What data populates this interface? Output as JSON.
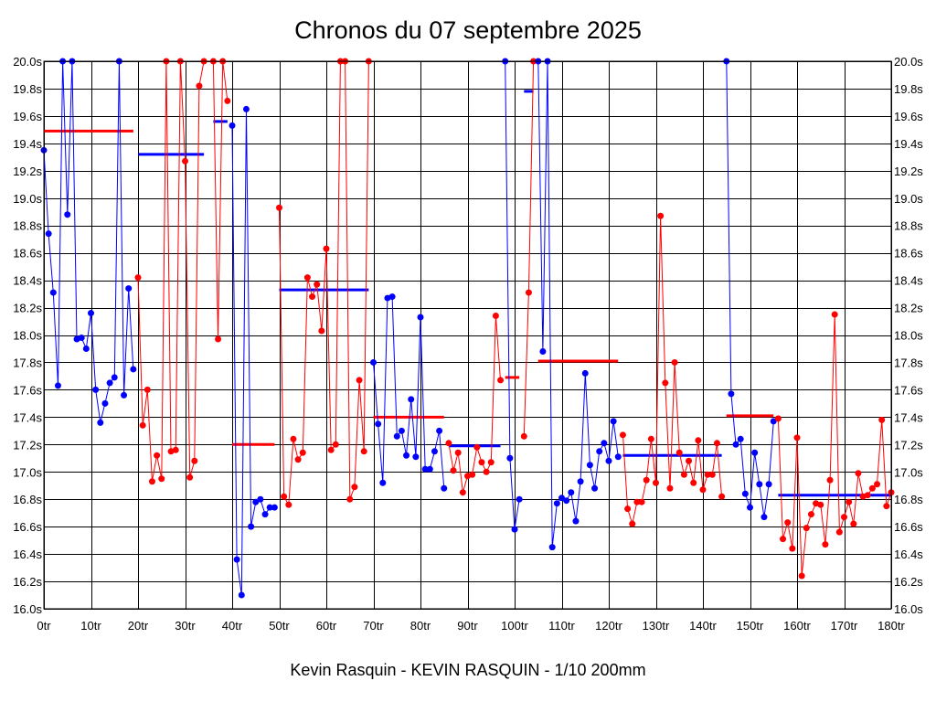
{
  "chart_data": {
    "type": "line",
    "title": "Chronos du 07 septembre 2025",
    "footer": "Kevin Rasquin - KEVIN RASQUIN - 1/10 200mm",
    "xlim": [
      0,
      180
    ],
    "ylim": [
      16.0,
      20.0
    ],
    "grid": true,
    "x_ticks": [
      0,
      10,
      20,
      30,
      40,
      50,
      60,
      70,
      80,
      90,
      100,
      110,
      120,
      130,
      140,
      150,
      160,
      170,
      180
    ],
    "x_tick_labels": [
      "0tr",
      "10tr",
      "20tr",
      "30tr",
      "40tr",
      "50tr",
      "60tr",
      "70tr",
      "80tr",
      "90tr",
      "100tr",
      "110tr",
      "120tr",
      "130tr",
      "140tr",
      "150tr",
      "160tr",
      "170tr",
      "180tr"
    ],
    "y_ticks": [
      16.0,
      16.2,
      16.4,
      16.6,
      16.8,
      17.0,
      17.2,
      17.4,
      17.6,
      17.8,
      18.0,
      18.2,
      18.4,
      18.6,
      18.8,
      19.0,
      19.2,
      19.4,
      19.6,
      19.8,
      20.0
    ],
    "y_tick_labels": [
      "16.0s",
      "16.2s",
      "16.4s",
      "16.6s",
      "16.8s",
      "17.0s",
      "17.2s",
      "17.4s",
      "17.6s",
      "17.8s",
      "18.0s",
      "18.2s",
      "18.4s",
      "18.6s",
      "18.8s",
      "19.0s",
      "19.2s",
      "19.4s",
      "19.6s",
      "19.8s",
      "20.0s"
    ],
    "colors": {
      "blue": "#0000ff",
      "red": "#ff0000"
    },
    "series": [
      {
        "color": "blue",
        "points": [
          [
            0,
            19.35
          ],
          [
            1,
            18.74
          ],
          [
            2,
            18.31
          ],
          [
            3,
            17.63
          ],
          [
            4,
            20.0
          ],
          [
            5,
            18.88
          ],
          [
            6,
            20.0
          ],
          [
            7,
            17.97
          ],
          [
            8,
            17.98
          ],
          [
            9,
            17.9
          ],
          [
            10,
            18.16
          ],
          [
            11,
            17.6
          ],
          [
            12,
            17.36
          ],
          [
            13,
            17.5
          ],
          [
            14,
            17.65
          ],
          [
            15,
            17.69
          ],
          [
            16,
            20.0
          ],
          [
            17,
            17.56
          ],
          [
            18,
            18.34
          ],
          [
            19,
            17.75
          ]
        ]
      },
      {
        "color": "red",
        "points": [
          [
            20,
            18.42
          ],
          [
            21,
            17.34
          ],
          [
            22,
            17.6
          ],
          [
            23,
            16.93
          ],
          [
            24,
            17.12
          ],
          [
            25,
            16.95
          ],
          [
            26,
            20.0
          ],
          [
            27,
            17.15
          ],
          [
            28,
            17.16
          ],
          [
            29,
            20.0
          ],
          [
            30,
            19.27
          ],
          [
            31,
            16.96
          ],
          [
            32,
            17.08
          ],
          [
            33,
            19.82
          ],
          [
            34,
            20.0
          ],
          [
            36,
            20.0
          ],
          [
            37,
            17.97
          ],
          [
            38,
            20.0
          ],
          [
            39,
            19.71
          ]
        ]
      },
      {
        "color": "blue",
        "points": [
          [
            40,
            19.53
          ],
          [
            41,
            16.36
          ],
          [
            42,
            16.1
          ],
          [
            43,
            19.65
          ],
          [
            44,
            16.6
          ],
          [
            45,
            16.78
          ],
          [
            46,
            16.8
          ],
          [
            47,
            16.69
          ],
          [
            48,
            16.74
          ],
          [
            49,
            16.74
          ]
        ]
      },
      {
        "color": "red",
        "points": [
          [
            50,
            18.93
          ],
          [
            51,
            16.82
          ],
          [
            52,
            16.76
          ],
          [
            53,
            17.24
          ],
          [
            54,
            17.09
          ],
          [
            55,
            17.14
          ],
          [
            56,
            18.42
          ],
          [
            57,
            18.28
          ],
          [
            58,
            18.37
          ],
          [
            59,
            18.03
          ],
          [
            60,
            18.63
          ],
          [
            61,
            17.16
          ],
          [
            62,
            17.2
          ],
          [
            63,
            20.0
          ],
          [
            64,
            20.0
          ],
          [
            65,
            16.8
          ],
          [
            66,
            16.89
          ],
          [
            67,
            17.67
          ],
          [
            68,
            17.15
          ],
          [
            69,
            20.0
          ]
        ]
      },
      {
        "color": "blue",
        "points": [
          [
            70,
            17.8
          ],
          [
            71,
            17.35
          ],
          [
            72,
            16.92
          ],
          [
            73,
            18.27
          ],
          [
            74,
            18.28
          ],
          [
            75,
            17.26
          ],
          [
            76,
            17.3
          ],
          [
            77,
            17.12
          ],
          [
            78,
            17.53
          ],
          [
            79,
            17.11
          ],
          [
            80,
            18.13
          ],
          [
            81,
            17.02
          ],
          [
            82,
            17.02
          ],
          [
            83,
            17.15
          ],
          [
            84,
            17.3
          ],
          [
            85,
            16.88
          ]
        ]
      },
      {
        "color": "red",
        "points": [
          [
            86,
            17.21
          ],
          [
            87,
            17.01
          ],
          [
            88,
            17.14
          ],
          [
            89,
            16.85
          ],
          [
            90,
            16.97
          ],
          [
            91,
            16.98
          ],
          [
            92,
            17.18
          ],
          [
            93,
            17.07
          ],
          [
            94,
            17.0
          ],
          [
            95,
            17.07
          ],
          [
            96,
            18.14
          ],
          [
            97,
            17.67
          ]
        ]
      },
      {
        "color": "blue",
        "points": [
          [
            98,
            20.0
          ],
          [
            99,
            17.1
          ],
          [
            100,
            16.58
          ],
          [
            101,
            16.8
          ]
        ]
      },
      {
        "color": "red",
        "points": [
          [
            102,
            17.26
          ],
          [
            103,
            18.31
          ],
          [
            104,
            20.0
          ]
        ]
      },
      {
        "color": "blue",
        "points": [
          [
            105,
            20.0
          ],
          [
            106,
            17.88
          ],
          [
            107,
            20.0
          ],
          [
            108,
            16.45
          ],
          [
            109,
            16.77
          ],
          [
            110,
            16.81
          ],
          [
            111,
            16.79
          ],
          [
            112,
            16.85
          ],
          [
            113,
            16.64
          ],
          [
            114,
            16.93
          ],
          [
            115,
            17.72
          ],
          [
            116,
            17.05
          ],
          [
            117,
            16.88
          ],
          [
            118,
            17.15
          ],
          [
            119,
            17.21
          ],
          [
            120,
            17.08
          ],
          [
            121,
            17.37
          ],
          [
            122,
            17.11
          ]
        ]
      },
      {
        "color": "red",
        "points": [
          [
            123,
            17.27
          ],
          [
            124,
            16.73
          ],
          [
            125,
            16.62
          ],
          [
            126,
            16.78
          ],
          [
            127,
            16.78
          ],
          [
            128,
            16.94
          ],
          [
            129,
            17.24
          ],
          [
            130,
            16.92
          ],
          [
            131,
            18.87
          ],
          [
            132,
            17.65
          ],
          [
            133,
            16.88
          ],
          [
            134,
            17.8
          ],
          [
            135,
            17.14
          ],
          [
            136,
            16.98
          ],
          [
            137,
            17.08
          ],
          [
            138,
            16.92
          ],
          [
            139,
            17.23
          ],
          [
            140,
            16.87
          ],
          [
            141,
            16.98
          ],
          [
            142,
            16.98
          ],
          [
            143,
            17.21
          ],
          [
            144,
            16.82
          ]
        ]
      },
      {
        "color": "blue",
        "points": [
          [
            145,
            20.0
          ],
          [
            146,
            17.57
          ],
          [
            147,
            17.2
          ],
          [
            148,
            17.24
          ],
          [
            149,
            16.84
          ],
          [
            150,
            16.74
          ],
          [
            151,
            17.14
          ],
          [
            152,
            16.91
          ],
          [
            153,
            16.67
          ],
          [
            154,
            16.91
          ],
          [
            155,
            17.37
          ]
        ]
      },
      {
        "color": "red",
        "points": [
          [
            156,
            17.39
          ],
          [
            157,
            16.51
          ],
          [
            158,
            16.63
          ],
          [
            159,
            16.44
          ],
          [
            160,
            17.25
          ],
          [
            161,
            16.24
          ],
          [
            162,
            16.59
          ],
          [
            163,
            16.69
          ],
          [
            164,
            16.77
          ],
          [
            165,
            16.76
          ],
          [
            166,
            16.47
          ],
          [
            167,
            16.94
          ],
          [
            168,
            18.15
          ],
          [
            169,
            16.56
          ],
          [
            170,
            16.67
          ],
          [
            171,
            16.78
          ],
          [
            172,
            16.62
          ],
          [
            173,
            16.99
          ],
          [
            174,
            16.82
          ],
          [
            175,
            16.83
          ],
          [
            176,
            16.88
          ],
          [
            177,
            16.91
          ],
          [
            178,
            17.38
          ],
          [
            179,
            16.75
          ],
          [
            180,
            16.85
          ]
        ]
      }
    ],
    "averages": [
      {
        "color": "red",
        "x1": 0,
        "x2": 19,
        "y": 19.49
      },
      {
        "color": "blue",
        "x1": 20,
        "x2": 34,
        "y": 19.32
      },
      {
        "color": "blue",
        "x1": 36,
        "x2": 39,
        "y": 19.56
      },
      {
        "color": "red",
        "x1": 40,
        "x2": 49,
        "y": 17.2
      },
      {
        "color": "blue",
        "x1": 50,
        "x2": 69,
        "y": 18.33
      },
      {
        "color": "red",
        "x1": 70,
        "x2": 85,
        "y": 17.4
      },
      {
        "color": "blue",
        "x1": 86,
        "x2": 97,
        "y": 17.19
      },
      {
        "color": "red",
        "x1": 98,
        "x2": 101,
        "y": 17.69
      },
      {
        "color": "blue",
        "x1": 102,
        "x2": 104,
        "y": 19.78
      },
      {
        "color": "red",
        "x1": 105,
        "x2": 122,
        "y": 17.81
      },
      {
        "color": "blue",
        "x1": 123,
        "x2": 144,
        "y": 17.12
      },
      {
        "color": "red",
        "x1": 145,
        "x2": 155,
        "y": 17.41
      },
      {
        "color": "blue",
        "x1": 156,
        "x2": 180,
        "y": 16.83
      }
    ]
  }
}
